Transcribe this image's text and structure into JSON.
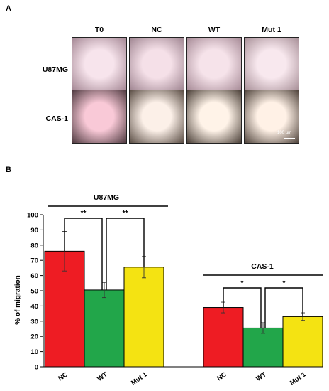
{
  "panel_a": {
    "label": "A",
    "columns": [
      "T0",
      "NC",
      "WT",
      "Mut 1"
    ],
    "rows": [
      "U87MG",
      "CAS-1"
    ],
    "scale_bar": "100 µm",
    "image_colors": {
      "U87MG": [
        {
          "center": "#f7e4ec",
          "edge": "#a48794"
        },
        {
          "center": "#f5e0e8",
          "edge": "#9f8591"
        },
        {
          "center": "#f6e3ea",
          "edge": "#a78b97"
        },
        {
          "center": "#f8e8ee",
          "edge": "#a89098"
        }
      ],
      "CAS-1": [
        {
          "center": "#f9c9d7",
          "edge": "#4f3a40"
        },
        {
          "center": "#fcf0e8",
          "edge": "#5a4d44"
        },
        {
          "center": "#fff3e8",
          "edge": "#4b4038"
        },
        {
          "center": "#fff1e6",
          "edge": "#50443c"
        }
      ]
    }
  },
  "panel_b": {
    "label": "B",
    "ylabel": "% of migration",
    "group_labels": [
      "U87MG",
      "CAS-1"
    ],
    "significance": [
      "**",
      "**",
      "*",
      "*"
    ]
  },
  "chart_data": {
    "type": "bar",
    "ylabel": "% of migration",
    "ylim": [
      0,
      100
    ],
    "yticks": [
      0,
      10,
      20,
      30,
      40,
      50,
      60,
      70,
      80,
      90,
      100
    ],
    "groups": [
      {
        "name": "U87MG",
        "categories": [
          "NC",
          "WT",
          "Mut 1"
        ],
        "values": [
          76,
          50.5,
          65.5
        ],
        "errors": [
          13,
          5,
          7
        ],
        "colors": [
          "#ee1c23",
          "#22a64a",
          "#f4e312"
        ]
      },
      {
        "name": "CAS-1",
        "categories": [
          "NC",
          "WT",
          "Mut 1"
        ],
        "values": [
          39,
          25.5,
          33
        ],
        "errors": [
          3.5,
          3.5,
          2.5
        ],
        "colors": [
          "#ee1c23",
          "#22a64a",
          "#f4e312"
        ]
      }
    ],
    "grid": false
  }
}
